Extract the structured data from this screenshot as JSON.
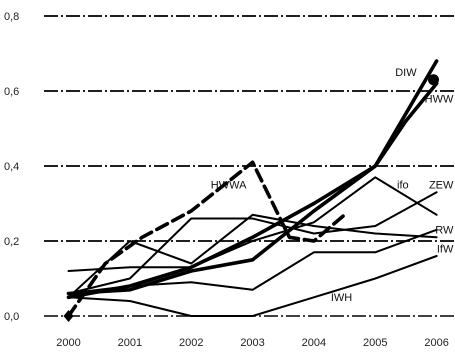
{
  "chart_data": {
    "type": "line",
    "x": [
      2000,
      2001,
      2002,
      2003,
      2004,
      2005,
      2006
    ],
    "xlim": [
      1999.6,
      2006.3
    ],
    "ylim": [
      0,
      0.8
    ],
    "yticks": [
      0,
      0.2,
      0.4,
      0.6,
      0.8
    ],
    "ytick_labels": [
      "0,0",
      "0,2",
      "0,4",
      "0,6",
      "0,8"
    ],
    "xtick_labels": [
      "2000",
      "2001",
      "2002",
      "2003",
      "2004",
      "2005",
      "2006"
    ],
    "grid": "horizontal dash-dot",
    "legend": "labels placed beside the line ends",
    "series": [
      {
        "name": "HWWA",
        "style": "dashed-thick",
        "color": "#000000",
        "points": [
          [
            2000,
            0.0
          ],
          [
            2000.6,
            0.14
          ],
          [
            2001.2,
            0.21
          ],
          [
            2002,
            0.28
          ],
          [
            2003,
            0.41
          ],
          [
            2003.6,
            0.21
          ],
          [
            2004,
            0.2
          ],
          [
            2004.5,
            0.27
          ]
        ]
      },
      {
        "name": "DIW",
        "style": "solid-thick",
        "color": "#000000",
        "points": [
          [
            2000,
            0.06
          ],
          [
            2001,
            0.07
          ],
          [
            2002,
            0.12
          ],
          [
            2003,
            0.15
          ],
          [
            2004,
            0.28
          ],
          [
            2005,
            0.4
          ],
          [
            2006,
            0.68
          ]
        ]
      },
      {
        "name": "HWW",
        "style": "solid-thick",
        "color": "#000000",
        "points": [
          [
            2000,
            0.05
          ],
          [
            2001,
            0.08
          ],
          [
            2002,
            0.13
          ],
          [
            2003,
            0.21
          ],
          [
            2004,
            0.3
          ],
          [
            2005,
            0.4
          ],
          [
            2005.5,
            0.52
          ],
          [
            2006,
            0.62
          ]
        ]
      },
      {
        "name": "ifo",
        "style": "solid",
        "color": "#000000",
        "points": [
          [
            2000,
            0.12
          ],
          [
            2001,
            0.13
          ],
          [
            2002,
            0.13
          ],
          [
            2003,
            0.2
          ],
          [
            2004,
            0.25
          ],
          [
            2005,
            0.37
          ],
          [
            2006,
            0.27
          ]
        ]
      },
      {
        "name": "ZEW",
        "style": "solid",
        "color": "#000000",
        "points": [
          [
            2000,
            0.06
          ],
          [
            2001,
            0.1
          ],
          [
            2002,
            0.26
          ],
          [
            2003,
            0.26
          ],
          [
            2004,
            0.22
          ],
          [
            2005,
            0.24
          ],
          [
            2006,
            0.33
          ]
        ]
      },
      {
        "name": "RW",
        "style": "solid",
        "color": "#000000",
        "points": [
          [
            2000,
            0.05
          ],
          [
            2001,
            0.2
          ],
          [
            2002,
            0.14
          ],
          [
            2003,
            0.27
          ],
          [
            2004,
            0.24
          ],
          [
            2005,
            0.22
          ],
          [
            2006,
            0.21
          ]
        ]
      },
      {
        "name": "IfW",
        "style": "solid",
        "color": "#000000",
        "points": [
          [
            2000,
            0.06
          ],
          [
            2001,
            0.08
          ],
          [
            2002,
            0.09
          ],
          [
            2003,
            0.07
          ],
          [
            2004,
            0.17
          ],
          [
            2005,
            0.17
          ],
          [
            2006,
            0.23
          ]
        ]
      },
      {
        "name": "IWH",
        "style": "solid",
        "color": "#000000",
        "points": [
          [
            2000,
            0.05
          ],
          [
            2001,
            0.04
          ],
          [
            2002,
            0.0
          ],
          [
            2003,
            0.0
          ],
          [
            2004,
            0.05
          ],
          [
            2005,
            0.1
          ],
          [
            2006,
            0.16
          ]
        ]
      }
    ],
    "markers": [
      {
        "series": "DIW",
        "x": 2005.95,
        "y": 0.63,
        "shape": "circle"
      },
      {
        "series": "HWWA",
        "x": 2000,
        "y": 0.0,
        "shape": "diamond"
      }
    ],
    "annotations": [
      {
        "text": "HWWA",
        "x": 2002.9,
        "y": 0.34,
        "anchor": "end"
      },
      {
        "text": "DIW",
        "x": 2005.5,
        "y": 0.64,
        "anchor": "middle"
      },
      {
        "text": "HWW",
        "x": 2006.1,
        "y": 0.57,
        "anchor": "start"
      },
      {
        "text": "ifo",
        "x": 2005.45,
        "y": 0.34,
        "anchor": "middle"
      },
      {
        "text": "ZEW",
        "x": 2006.1,
        "y": 0.34,
        "anchor": "start"
      },
      {
        "text": "RW",
        "x": 2006.1,
        "y": 0.22,
        "anchor": "start"
      },
      {
        "text": "IfW",
        "x": 2006.1,
        "y": 0.17,
        "anchor": "start"
      },
      {
        "text": "IWH",
        "x": 2004.45,
        "y": 0.04,
        "anchor": "middle"
      }
    ]
  }
}
